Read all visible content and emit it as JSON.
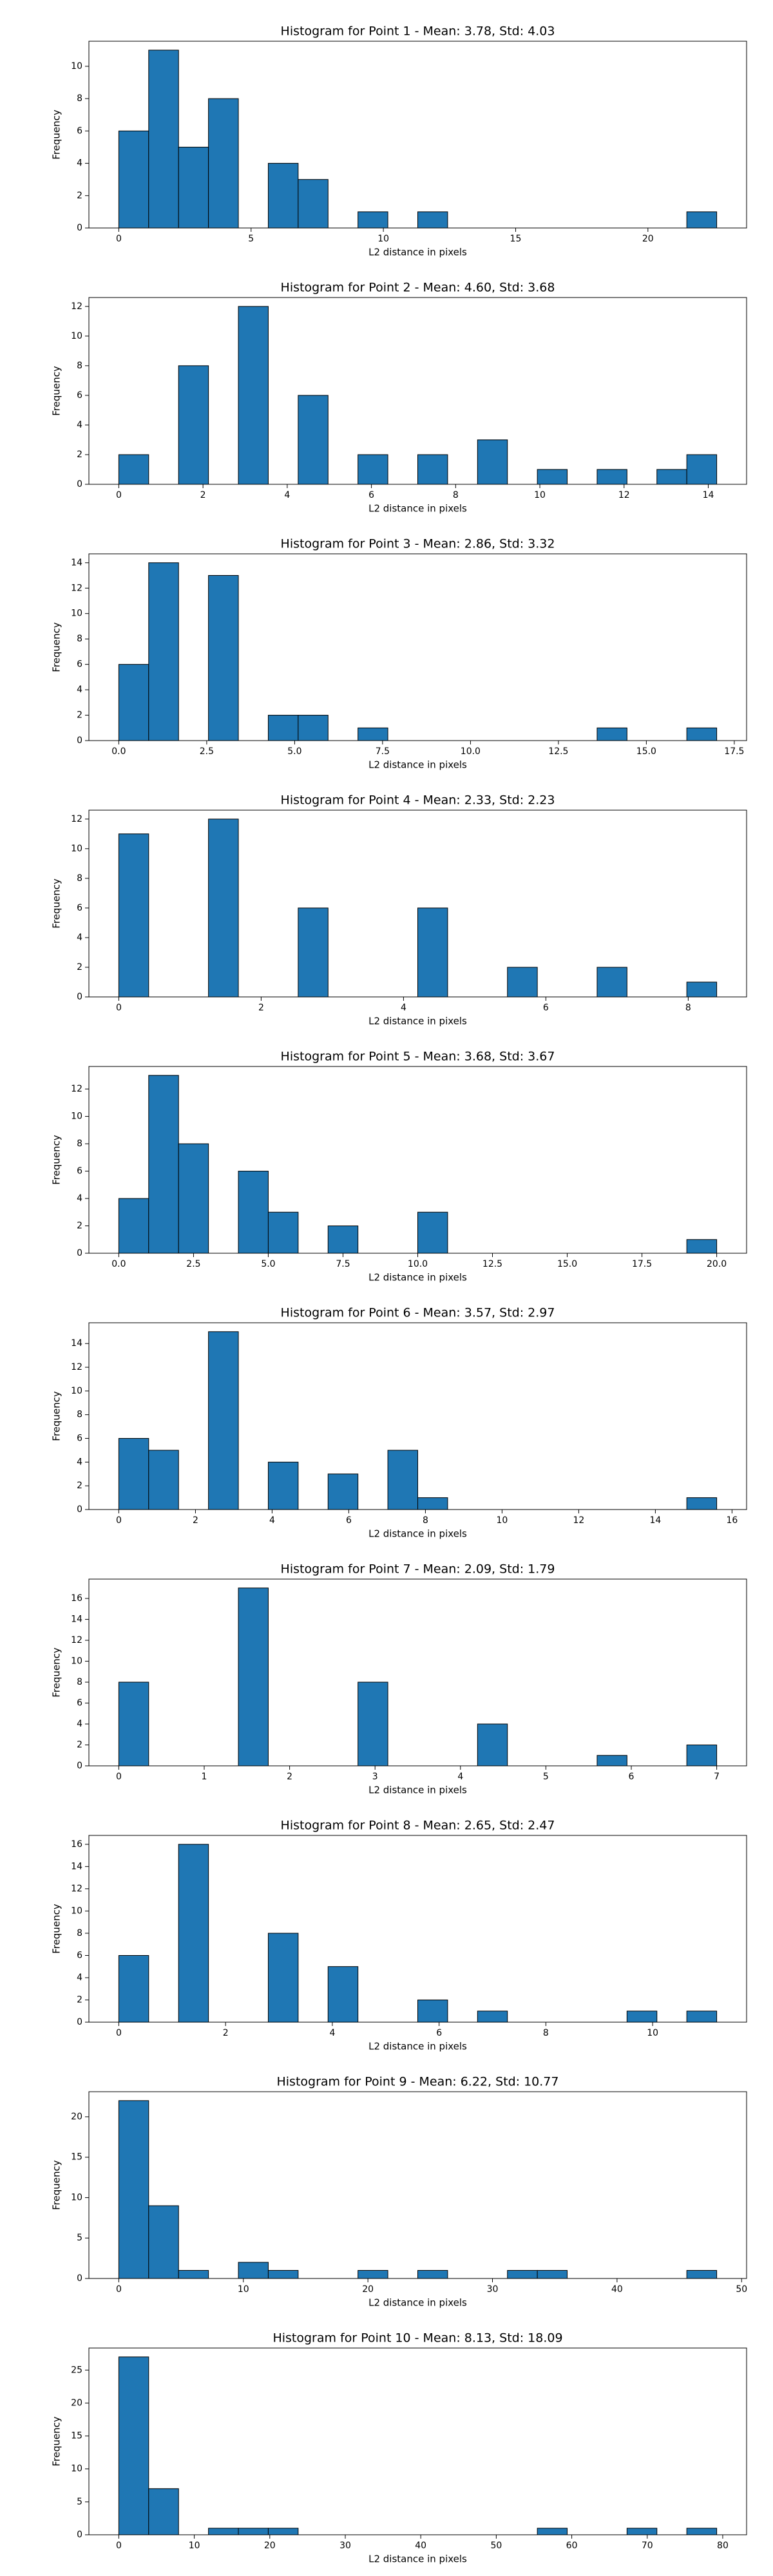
{
  "chart_data": [
    {
      "type": "histogram",
      "title": "Histogram for Point 1 - Mean: 3.78, Std: 4.03",
      "xlabel": "L2 distance in pixels",
      "ylabel": "Frequency",
      "color": "#1f77b4",
      "bins": [
        0,
        1.13,
        2.26,
        3.39,
        4.52,
        5.65,
        6.78,
        7.91,
        9.04,
        10.17,
        11.3,
        12.43,
        13.56,
        14.69,
        15.82,
        16.95,
        18.08,
        19.21,
        20.34,
        21.47,
        22.6
      ],
      "values": [
        6,
        11,
        5,
        8,
        0,
        4,
        3,
        0,
        1,
        0,
        1,
        0,
        0,
        0,
        0,
        0,
        0,
        0,
        0,
        1
      ],
      "xlim": [
        -1.13,
        23.73
      ],
      "xticks": [
        0,
        5,
        10,
        15,
        20
      ],
      "ylim": [
        0,
        11.55
      ],
      "yticks": [
        0,
        2,
        4,
        6,
        8,
        10
      ]
    },
    {
      "type": "histogram",
      "title": "Histogram for Point 2 - Mean: 4.60, Std: 3.68",
      "xlabel": "L2 distance in pixels",
      "ylabel": "Frequency",
      "color": "#1f77b4",
      "bins": [
        0,
        0.71,
        1.42,
        2.13,
        2.84,
        3.55,
        4.26,
        4.97,
        5.68,
        6.39,
        7.1,
        7.81,
        8.52,
        9.23,
        9.94,
        10.65,
        11.36,
        12.07,
        12.78,
        13.49,
        14.2
      ],
      "values": [
        2,
        0,
        8,
        0,
        12,
        0,
        6,
        0,
        2,
        0,
        2,
        0,
        3,
        0,
        1,
        0,
        1,
        0,
        1,
        2
      ],
      "xlim": [
        -0.71,
        14.91
      ],
      "xticks": [
        0,
        2,
        4,
        6,
        8,
        10,
        12,
        14
      ],
      "ylim": [
        0,
        12.6
      ],
      "yticks": [
        0,
        2,
        4,
        6,
        8,
        10,
        12
      ]
    },
    {
      "type": "histogram",
      "title": "Histogram for Point 3 - Mean: 2.86, Std: 3.32",
      "xlabel": "L2 distance in pixels",
      "ylabel": "Frequency",
      "color": "#1f77b4",
      "bins": [
        0,
        0.85,
        1.7,
        2.55,
        3.4,
        4.25,
        5.1,
        5.95,
        6.8,
        7.65,
        8.5,
        9.35,
        10.2,
        11.05,
        11.9,
        12.75,
        13.6,
        14.45,
        15.3,
        16.15,
        17
      ],
      "values": [
        6,
        14,
        0,
        13,
        0,
        2,
        2,
        0,
        1,
        0,
        0,
        0,
        0,
        0,
        0,
        0,
        1,
        0,
        0,
        1
      ],
      "xlim": [
        -0.85,
        17.85
      ],
      "xticks": [
        {
          "value": 0,
          "label": "0.0"
        },
        {
          "value": 2.5,
          "label": "2.5"
        },
        {
          "value": 5,
          "label": "5.0"
        },
        {
          "value": 7.5,
          "label": "7.5"
        },
        {
          "value": 10,
          "label": "10.0"
        },
        {
          "value": 12.5,
          "label": "12.5"
        },
        {
          "value": 15,
          "label": "15.0"
        },
        {
          "value": 17.5,
          "label": "17.5"
        }
      ],
      "ylim": [
        0,
        14.7
      ],
      "yticks": [
        0,
        2,
        4,
        6,
        8,
        10,
        12,
        14
      ]
    },
    {
      "type": "histogram",
      "title": "Histogram for Point 4 - Mean: 2.33, Std: 2.23",
      "xlabel": "L2 distance in pixels",
      "ylabel": "Frequency",
      "color": "#1f77b4",
      "bins": [
        0,
        0.42,
        0.84,
        1.26,
        1.68,
        2.1,
        2.52,
        2.94,
        3.36,
        3.78,
        4.2,
        4.62,
        5.04,
        5.46,
        5.88,
        6.3,
        6.72,
        7.14,
        7.56,
        7.98,
        8.4
      ],
      "values": [
        11,
        0,
        0,
        12,
        0,
        0,
        6,
        0,
        0,
        0,
        6,
        0,
        0,
        2,
        0,
        0,
        2,
        0,
        0,
        1
      ],
      "xlim": [
        -0.42,
        8.82
      ],
      "xticks": [
        0,
        2,
        4,
        6,
        8
      ],
      "ylim": [
        0,
        12.6
      ],
      "yticks": [
        0,
        2,
        4,
        6,
        8,
        10,
        12
      ]
    },
    {
      "type": "histogram",
      "title": "Histogram for Point 5 - Mean: 3.68, Std: 3.67",
      "xlabel": "L2 distance in pixels",
      "ylabel": "Frequency",
      "color": "#1f77b4",
      "bins": [
        0,
        1,
        2,
        3,
        4,
        5,
        6,
        7,
        8,
        9,
        10,
        11,
        12,
        13,
        14,
        15,
        16,
        17,
        18,
        19,
        20
      ],
      "values": [
        4,
        13,
        8,
        0,
        6,
        3,
        0,
        2,
        0,
        0,
        3,
        0,
        0,
        0,
        0,
        0,
        0,
        0,
        0,
        1
      ],
      "xlim": [
        -1,
        21
      ],
      "xticks": [
        {
          "value": 0,
          "label": "0.0"
        },
        {
          "value": 2.5,
          "label": "2.5"
        },
        {
          "value": 5,
          "label": "5.0"
        },
        {
          "value": 7.5,
          "label": "7.5"
        },
        {
          "value": 10,
          "label": "10.0"
        },
        {
          "value": 12.5,
          "label": "12.5"
        },
        {
          "value": 15,
          "label": "15.0"
        },
        {
          "value": 17.5,
          "label": "17.5"
        },
        {
          "value": 20,
          "label": "20.0"
        }
      ],
      "ylim": [
        0,
        13.65
      ],
      "yticks": [
        0,
        2,
        4,
        6,
        8,
        10,
        12
      ]
    },
    {
      "type": "histogram",
      "title": "Histogram for Point 6 - Mean: 3.57, Std: 2.97",
      "xlabel": "L2 distance in pixels",
      "ylabel": "Frequency",
      "color": "#1f77b4",
      "bins": [
        0,
        0.78,
        1.56,
        2.34,
        3.12,
        3.9,
        4.68,
        5.46,
        6.24,
        7.02,
        7.8,
        8.58,
        9.36,
        10.14,
        10.92,
        11.7,
        12.48,
        13.26,
        14.04,
        14.82,
        15.6
      ],
      "values": [
        6,
        5,
        0,
        15,
        0,
        4,
        0,
        3,
        0,
        5,
        1,
        0,
        0,
        0,
        0,
        0,
        0,
        0,
        0,
        1
      ],
      "xlim": [
        -0.78,
        16.38
      ],
      "xticks": [
        0,
        2,
        4,
        6,
        8,
        10,
        12,
        14,
        16
      ],
      "ylim": [
        0,
        15.75
      ],
      "yticks": [
        0,
        2,
        4,
        6,
        8,
        10,
        12,
        14
      ]
    },
    {
      "type": "histogram",
      "title": "Histogram for Point 7 - Mean: 2.09, Std: 1.79",
      "xlabel": "L2 distance in pixels",
      "ylabel": "Frequency",
      "color": "#1f77b4",
      "bins": [
        0,
        0.35,
        0.7,
        1.05,
        1.4,
        1.75,
        2.1,
        2.45,
        2.8,
        3.15,
        3.5,
        3.85,
        4.2,
        4.55,
        4.9,
        5.25,
        5.6,
        5.95,
        6.3,
        6.65,
        7
      ],
      "values": [
        8,
        0,
        0,
        0,
        17,
        0,
        0,
        0,
        8,
        0,
        0,
        0,
        4,
        0,
        0,
        0,
        1,
        0,
        0,
        2
      ],
      "xlim": [
        -0.35,
        7.35
      ],
      "xticks": [
        0,
        1,
        2,
        3,
        4,
        5,
        6,
        7
      ],
      "ylim": [
        0,
        17.85
      ],
      "yticks": [
        0,
        2,
        4,
        6,
        8,
        10,
        12,
        14,
        16
      ]
    },
    {
      "type": "histogram",
      "title": "Histogram for Point 8 - Mean: 2.65, Std: 2.47",
      "xlabel": "L2 distance in pixels",
      "ylabel": "Frequency",
      "color": "#1f77b4",
      "bins": [
        0,
        0.56,
        1.12,
        1.68,
        2.24,
        2.8,
        3.36,
        3.92,
        4.48,
        5.04,
        5.6,
        6.16,
        6.72,
        7.28,
        7.84,
        8.4,
        8.96,
        9.52,
        10.08,
        10.64,
        11.2
      ],
      "values": [
        6,
        0,
        16,
        0,
        0,
        8,
        0,
        5,
        0,
        0,
        2,
        0,
        1,
        0,
        0,
        0,
        0,
        1,
        0,
        1
      ],
      "xlim": [
        -0.56,
        11.76
      ],
      "xticks": [
        0,
        2,
        4,
        6,
        8,
        10
      ],
      "ylim": [
        0,
        16.8
      ],
      "yticks": [
        0,
        2,
        4,
        6,
        8,
        10,
        12,
        14,
        16
      ]
    },
    {
      "type": "histogram",
      "title": "Histogram for Point 9 - Mean: 6.22, Std: 10.77",
      "xlabel": "L2 distance in pixels",
      "ylabel": "Frequency",
      "color": "#1f77b4",
      "bins": [
        0,
        2.4,
        4.8,
        7.2,
        9.6,
        12,
        14.4,
        16.8,
        19.2,
        21.6,
        24,
        26.4,
        28.8,
        31.2,
        33.6,
        36,
        38.4,
        40.8,
        43.2,
        45.6,
        48
      ],
      "values": [
        22,
        9,
        1,
        0,
        2,
        1,
        0,
        0,
        1,
        0,
        1,
        0,
        0,
        1,
        1,
        0,
        0,
        0,
        0,
        1
      ],
      "xlim": [
        -2.4,
        50.4
      ],
      "xticks": [
        0,
        10,
        20,
        30,
        40,
        50
      ],
      "ylim": [
        0,
        23.1
      ],
      "yticks": [
        0,
        5,
        10,
        15,
        20
      ]
    },
    {
      "type": "histogram",
      "title": "Histogram for Point 10 - Mean: 8.13, Std: 18.09",
      "xlabel": "L2 distance in pixels",
      "ylabel": "Frequency",
      "color": "#1f77b4",
      "bins": [
        0,
        3.96,
        7.92,
        11.88,
        15.84,
        19.8,
        23.76,
        27.72,
        31.68,
        35.64,
        39.6,
        43.56,
        47.52,
        51.48,
        55.44,
        59.4,
        63.36,
        67.32,
        71.28,
        75.24,
        79.2
      ],
      "values": [
        27,
        7,
        0,
        1,
        1,
        1,
        0,
        0,
        0,
        0,
        0,
        0,
        0,
        0,
        1,
        0,
        0,
        1,
        0,
        1
      ],
      "xlim": [
        -3.96,
        83.16
      ],
      "xticks": [
        0,
        10,
        20,
        30,
        40,
        50,
        60,
        70,
        80
      ],
      "ylim": [
        0,
        28.35
      ],
      "yticks": [
        0,
        5,
        10,
        15,
        20,
        25
      ]
    }
  ]
}
